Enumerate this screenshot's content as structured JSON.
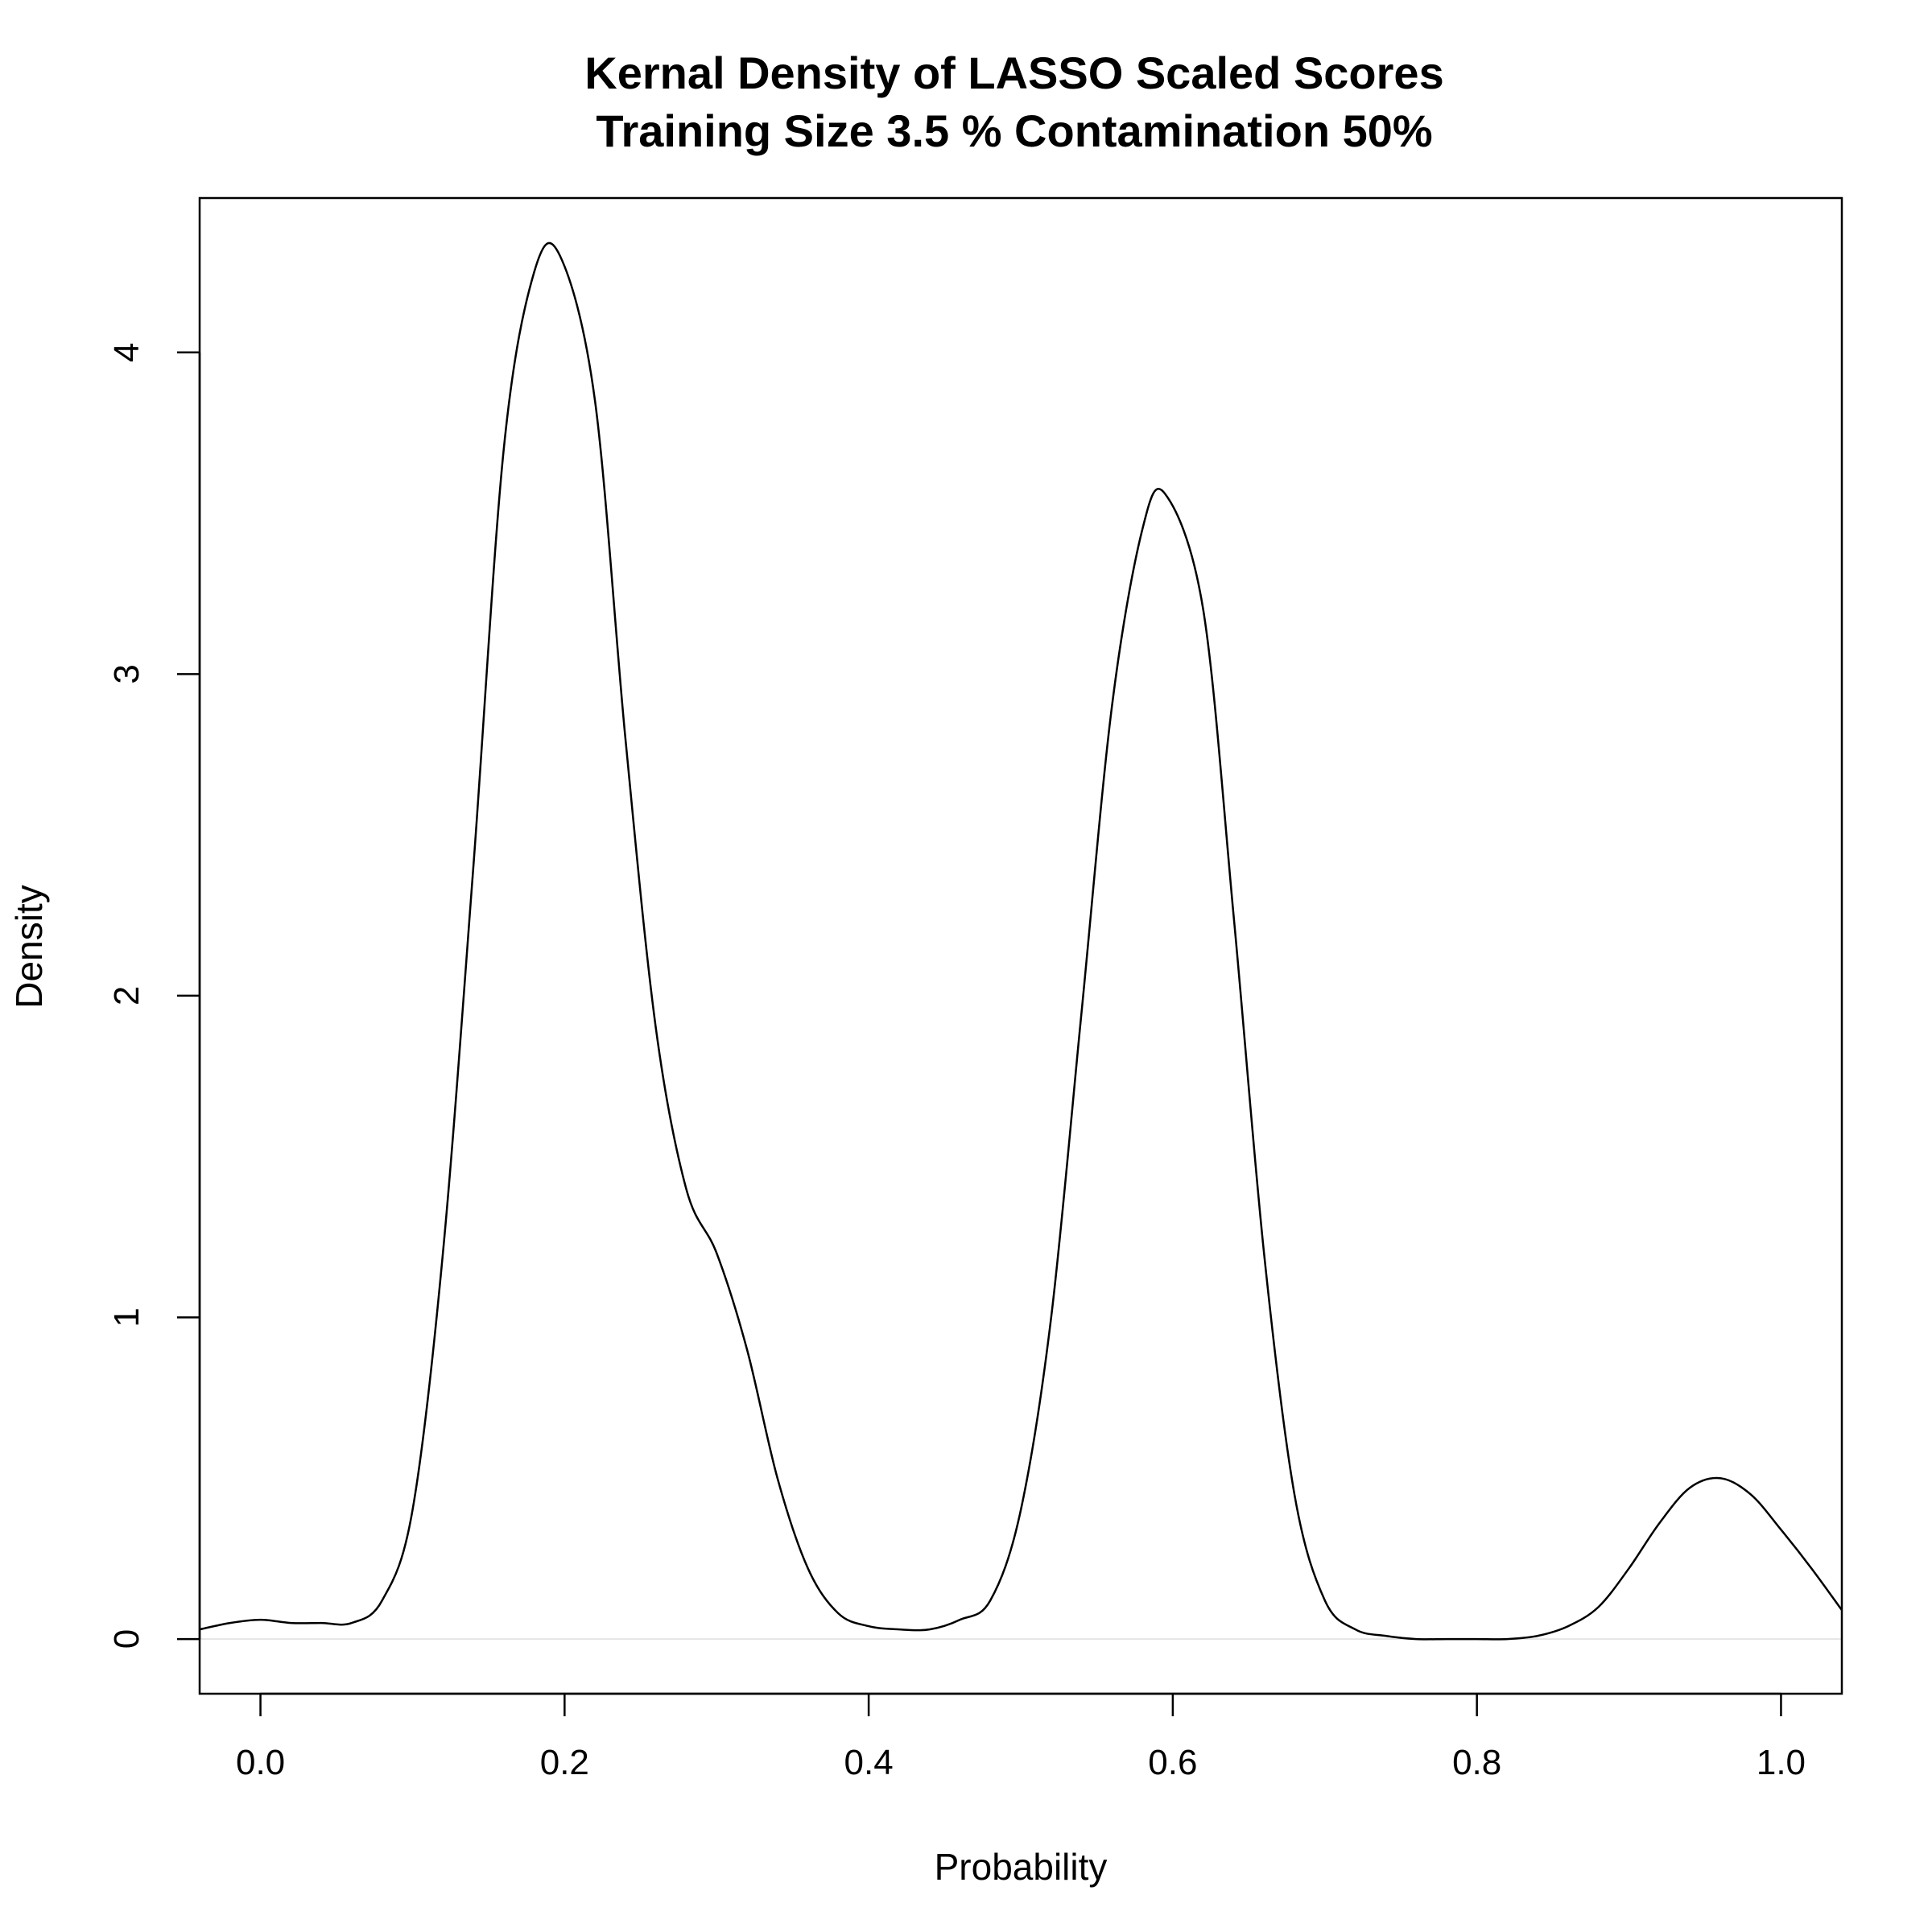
{
  "chart_data": {
    "type": "line",
    "title": "Kernal Density of LASSO Scaled Scores",
    "subtitle": "Training Size 3.5 % Contamination 50%",
    "xlabel": "Probability",
    "ylabel": "Density",
    "xlim": [
      -0.04,
      1.04
    ],
    "ylim": [
      -0.17,
      4.48
    ],
    "x_ticks": [
      "0.0",
      "0.2",
      "0.4",
      "0.6",
      "0.8",
      "1.0"
    ],
    "y_ticks": [
      "0",
      "1",
      "2",
      "3",
      "4"
    ],
    "grid": false,
    "baseline_y": 0,
    "line_color": "#000000",
    "baseline_color": "#e5e5e5",
    "series": [
      {
        "x": [
          -0.04,
          -0.02,
          0.0,
          0.02,
          0.04,
          0.06,
          0.08,
          0.1,
          0.12,
          0.14,
          0.16,
          0.18,
          0.197,
          0.22,
          0.24,
          0.26,
          0.28,
          0.3,
          0.32,
          0.34,
          0.36,
          0.38,
          0.4,
          0.42,
          0.44,
          0.46,
          0.48,
          0.5,
          0.52,
          0.54,
          0.56,
          0.58,
          0.595,
          0.62,
          0.64,
          0.66,
          0.68,
          0.7,
          0.72,
          0.74,
          0.76,
          0.78,
          0.8,
          0.82,
          0.84,
          0.86,
          0.88,
          0.9,
          0.92,
          0.94,
          0.96,
          0.98,
          1.0,
          1.02,
          1.04
        ],
        "y": [
          0.03,
          0.05,
          0.06,
          0.05,
          0.05,
          0.05,
          0.12,
          0.4,
          1.2,
          2.4,
          3.7,
          4.25,
          4.3,
          3.85,
          2.8,
          1.9,
          1.4,
          1.2,
          0.9,
          0.5,
          0.22,
          0.08,
          0.04,
          0.03,
          0.03,
          0.06,
          0.12,
          0.4,
          1.0,
          1.95,
          2.9,
          3.45,
          3.56,
          3.2,
          2.25,
          1.2,
          0.45,
          0.12,
          0.03,
          0.01,
          0.0,
          0.0,
          0.0,
          0.0,
          0.01,
          0.04,
          0.1,
          0.22,
          0.36,
          0.47,
          0.5,
          0.45,
          0.34,
          0.22,
          0.09
        ]
      }
    ]
  }
}
